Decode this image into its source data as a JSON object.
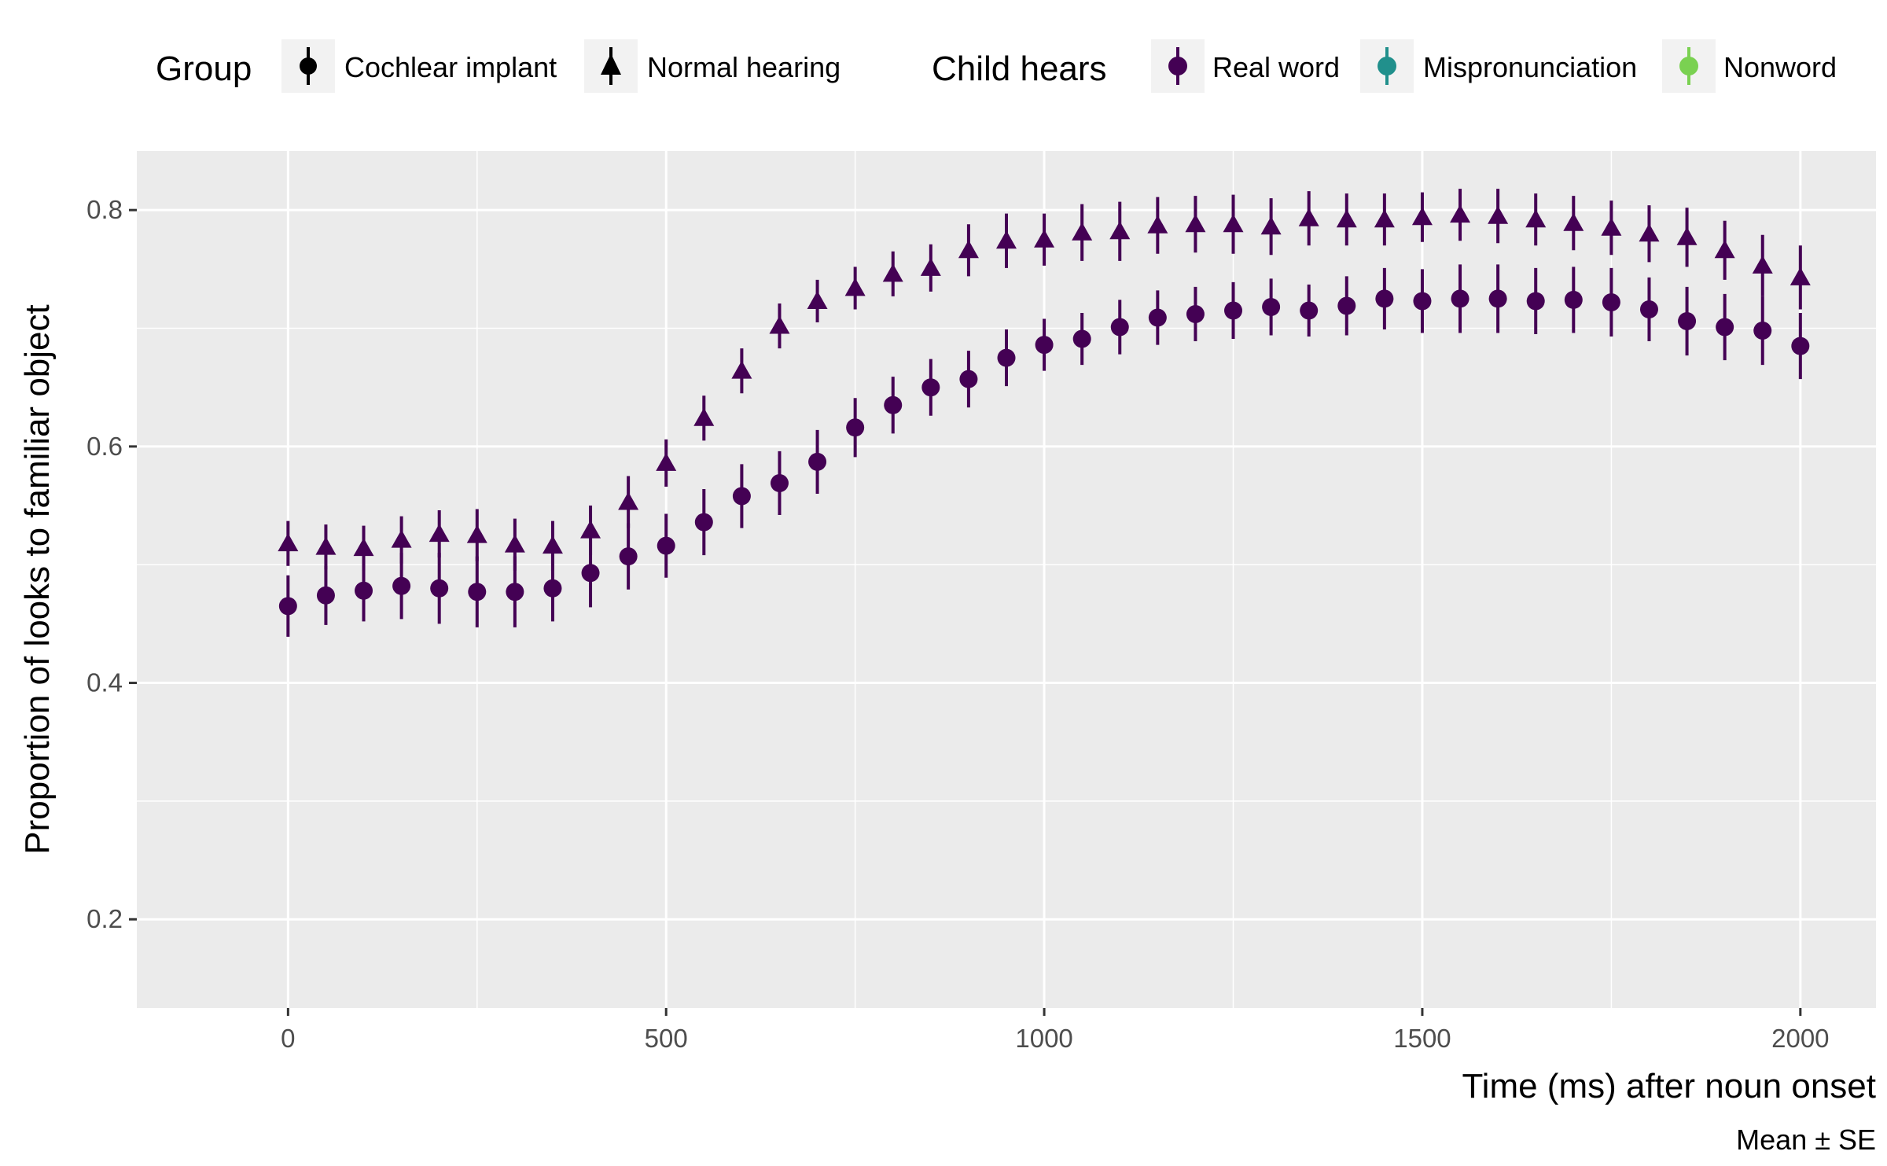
{
  "legend": {
    "group_title": "Group",
    "group_items": [
      {
        "label": "Cochlear implant",
        "shape": "circle"
      },
      {
        "label": "Normal hearing",
        "shape": "triangle"
      }
    ],
    "hears_title": "Child hears",
    "hears_items": [
      {
        "label": "Real word",
        "color": "#440154"
      },
      {
        "label": "Mispronunciation",
        "color": "#21908C"
      },
      {
        "label": "Nonword",
        "color": "#7AD151"
      }
    ]
  },
  "caption": "Mean ± SE",
  "colors": {
    "panel_bg": "#EBEBEB",
    "grid_major": "#FFFFFF",
    "real_word": "#440154",
    "legend_key_bg": "#F2F2F2"
  },
  "chart_data": {
    "type": "scatter",
    "title": "",
    "xlabel": "Time (ms) after noun onset",
    "ylabel": "Proportion of looks to familiar object",
    "xlim": [
      -200,
      2100
    ],
    "ylim": [
      0.125,
      0.85
    ],
    "x_ticks": [
      0,
      500,
      1000,
      1500,
      2000
    ],
    "x_tick_labels": [
      "0",
      "500",
      "1000",
      "1500",
      "2000"
    ],
    "y_ticks": [
      0.2,
      0.4,
      0.6,
      0.8
    ],
    "y_tick_labels": [
      "0.2",
      "0.4",
      "0.6",
      "0.8"
    ],
    "grid": true,
    "legend_position": "top",
    "x": [
      0,
      50,
      100,
      150,
      200,
      250,
      300,
      350,
      400,
      450,
      500,
      550,
      600,
      650,
      700,
      750,
      800,
      850,
      900,
      950,
      1000,
      1050,
      1100,
      1150,
      1200,
      1250,
      1300,
      1350,
      1400,
      1450,
      1500,
      1550,
      1600,
      1650,
      1700,
      1750,
      1800,
      1850,
      1900,
      1950,
      2000
    ],
    "series": [
      {
        "name": "Normal hearing",
        "shape": "triangle",
        "condition": "Real word",
        "color": "#440154",
        "y": [
          0.518,
          0.515,
          0.514,
          0.521,
          0.526,
          0.525,
          0.517,
          0.516,
          0.529,
          0.553,
          0.586,
          0.624,
          0.664,
          0.702,
          0.723,
          0.734,
          0.746,
          0.751,
          0.766,
          0.774,
          0.775,
          0.781,
          0.782,
          0.787,
          0.788,
          0.788,
          0.786,
          0.793,
          0.792,
          0.792,
          0.794,
          0.796,
          0.795,
          0.792,
          0.789,
          0.785,
          0.78,
          0.777,
          0.766,
          0.753,
          0.743
        ],
        "se": [
          0.019,
          0.019,
          0.019,
          0.02,
          0.02,
          0.022,
          0.022,
          0.021,
          0.021,
          0.022,
          0.02,
          0.019,
          0.019,
          0.019,
          0.018,
          0.018,
          0.019,
          0.02,
          0.022,
          0.023,
          0.022,
          0.024,
          0.025,
          0.024,
          0.024,
          0.025,
          0.024,
          0.023,
          0.022,
          0.022,
          0.021,
          0.022,
          0.023,
          0.022,
          0.023,
          0.023,
          0.024,
          0.025,
          0.025,
          0.026,
          0.027
        ]
      },
      {
        "name": "Cochlear implant",
        "shape": "circle",
        "condition": "Real word",
        "color": "#440154",
        "y": [
          0.465,
          0.474,
          0.478,
          0.482,
          0.48,
          0.477,
          0.477,
          0.48,
          0.493,
          0.507,
          0.516,
          0.536,
          0.558,
          0.569,
          0.587,
          0.616,
          0.635,
          0.65,
          0.657,
          0.675,
          0.686,
          0.691,
          0.701,
          0.709,
          0.712,
          0.715,
          0.718,
          0.715,
          0.719,
          0.725,
          0.723,
          0.725,
          0.725,
          0.723,
          0.724,
          0.722,
          0.716,
          0.706,
          0.701,
          0.698,
          0.685
        ],
        "se": [
          0.026,
          0.025,
          0.026,
          0.028,
          0.03,
          0.03,
          0.03,
          0.028,
          0.029,
          0.028,
          0.027,
          0.028,
          0.027,
          0.027,
          0.027,
          0.025,
          0.024,
          0.024,
          0.024,
          0.024,
          0.022,
          0.022,
          0.023,
          0.023,
          0.023,
          0.024,
          0.024,
          0.022,
          0.025,
          0.026,
          0.027,
          0.029,
          0.029,
          0.028,
          0.028,
          0.029,
          0.027,
          0.029,
          0.028,
          0.029,
          0.028
        ]
      }
    ]
  }
}
